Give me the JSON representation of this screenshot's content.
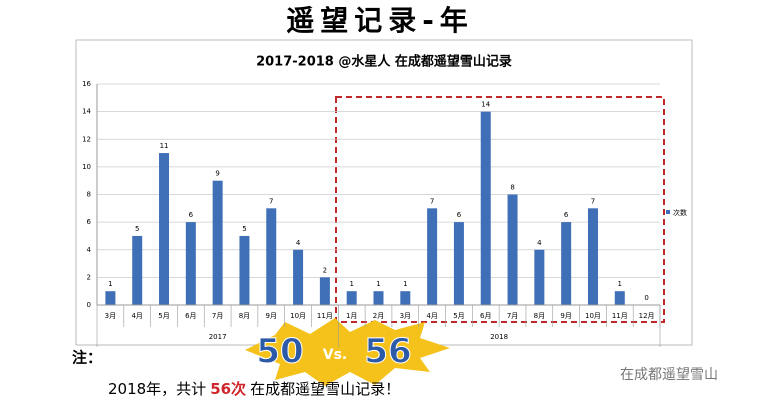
{
  "page": {
    "title": "遥望记录-年",
    "note_label": "注：",
    "compare_left": "50",
    "compare_mid": "Vs.",
    "compare_right": "56",
    "summary_start": "2018年，共计",
    "summary_highlight": "56次",
    "summary_end": "在成都遥望雪山记录！",
    "watermark": "在成都遥望雪山"
  },
  "chart_data": {
    "type": "bar",
    "title": "2017-2018 @水星人 在成都遥望雪山记录",
    "series_name": "次数",
    "color": "#3f6fb6",
    "groups": [
      {
        "name": "2017",
        "categories": [
          "3月",
          "4月",
          "5月",
          "6月",
          "7月",
          "8月",
          "9月",
          "10月",
          "11月"
        ],
        "values": [
          1,
          5,
          11,
          6,
          9,
          5,
          7,
          4,
          2
        ]
      },
      {
        "name": "2018",
        "categories": [
          "1月",
          "2月",
          "3月",
          "4月",
          "5月",
          "6月",
          "7月",
          "8月",
          "9月",
          "10月",
          "11月",
          "12月"
        ],
        "values": [
          1,
          1,
          1,
          7,
          6,
          14,
          8,
          4,
          6,
          7,
          1,
          0
        ]
      }
    ],
    "ylim": [
      0,
      16
    ],
    "yticks": [
      0,
      2,
      4,
      6,
      8,
      10,
      12,
      14,
      16
    ],
    "grid": true
  }
}
